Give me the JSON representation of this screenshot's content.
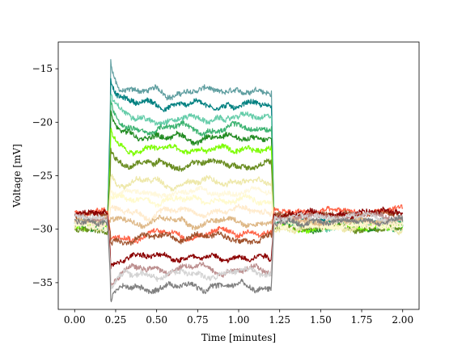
{
  "chart_data": {
    "type": "line",
    "title": "",
    "xlabel": "Time [minutes]",
    "ylabel": "Voltage [mV]",
    "xlim": [
      -0.1,
      2.1
    ],
    "ylim": [
      -37.5,
      -12.5
    ],
    "xticks": [
      0.0,
      0.25,
      0.5,
      0.75,
      1.0,
      1.25,
      1.5,
      1.75,
      2.0
    ],
    "xtick_labels": [
      "0.00",
      "0.25",
      "0.50",
      "0.75",
      "1.00",
      "1.25",
      "1.50",
      "1.75",
      "2.00"
    ],
    "yticks": [
      -35,
      -30,
      -25,
      -20,
      -15
    ],
    "ytick_labels": [
      "−35",
      "−30",
      "−25",
      "−20",
      "−15"
    ],
    "grid": false,
    "legend": false,
    "step_on": 0.2,
    "step_off": 1.2,
    "series": [
      {
        "color": "#5f9ea0",
        "baseline": -29.4,
        "plateau": -17.2
      },
      {
        "color": "#008080",
        "baseline": -29.6,
        "plateau": -18.3
      },
      {
        "color": "#66cdaa",
        "baseline": -29.5,
        "plateau": -19.6
      },
      {
        "color": "#3cb371",
        "baseline": -29.6,
        "plateau": -20.6
      },
      {
        "color": "#228b22",
        "baseline": -29.7,
        "plateau": -21.4
      },
      {
        "color": "#7cfc00",
        "baseline": -29.8,
        "plateau": -22.6
      },
      {
        "color": "#6b8e23",
        "baseline": -29.9,
        "plateau": -23.9
      },
      {
        "color": "#eee8aa",
        "baseline": -29.8,
        "plateau": -25.6
      },
      {
        "color": "#fff8dc",
        "baseline": -29.7,
        "plateau": -26.6
      },
      {
        "color": "#fffacd",
        "baseline": -29.5,
        "plateau": -27.4
      },
      {
        "color": "#ffebcd",
        "baseline": -29.3,
        "plateau": -28.3
      },
      {
        "color": "#deb887",
        "baseline": -29.1,
        "plateau": -29.3
      },
      {
        "color": "#ff6347",
        "baseline": -28.4,
        "plateau": -30.4
      },
      {
        "color": "#a0522d",
        "baseline": -28.6,
        "plateau": -30.7
      },
      {
        "color": "#8b0000",
        "baseline": -28.5,
        "plateau": -32.6
      },
      {
        "color": "#bc8f8f",
        "baseline": -28.8,
        "plateau": -33.7
      },
      {
        "color": "#d3d3d3",
        "baseline": -29.0,
        "plateau": -34.2
      },
      {
        "color": "#808080",
        "baseline": -29.2,
        "plateau": -35.3
      }
    ]
  }
}
